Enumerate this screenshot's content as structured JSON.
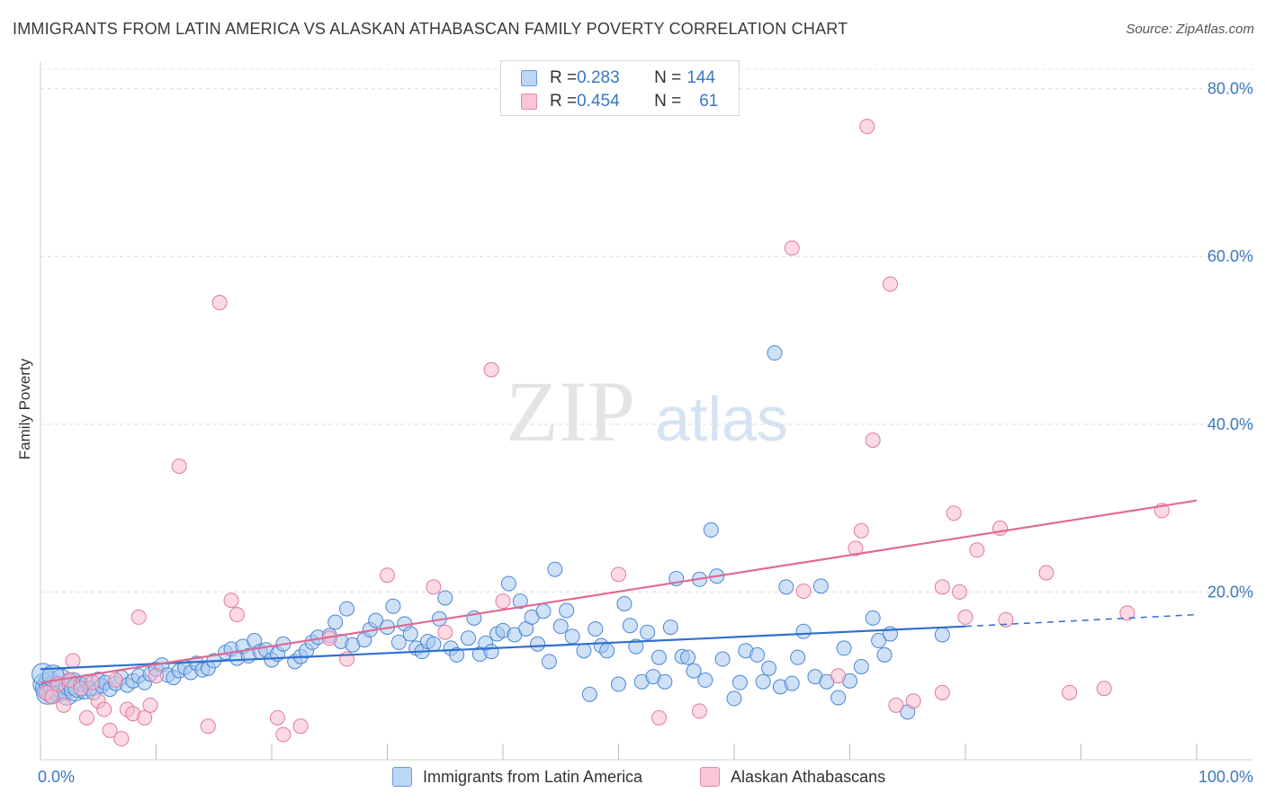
{
  "title": "IMMIGRANTS FROM LATIN AMERICA VS ALASKAN ATHABASCAN FAMILY POVERTY CORRELATION CHART",
  "source": "Source: ZipAtlas.com",
  "watermark": {
    "zip": "ZIP",
    "atlas": "atlas"
  },
  "legend_top": {
    "rows": [
      {
        "r_label": "R = ",
        "r_value": "0.283",
        "n_label": "N = ",
        "n_value": "144"
      },
      {
        "r_label": "R = ",
        "r_value": "0.454",
        "n_label": "N = ",
        "n_value": "61"
      }
    ]
  },
  "colors": {
    "blue_fill": "#a8c8f0",
    "blue_stroke": "#4a86d4",
    "blue_line": "#2f6fcf",
    "pink_fill": "#f7bccd",
    "pink_stroke": "#e07a9c",
    "pink_line": "#e06a94",
    "axis_text": "#3b76c4"
  },
  "chart_data": {
    "type": "scatter",
    "title": "IMMIGRANTS FROM LATIN AMERICA VS ALASKAN ATHABASCAN FAMILY POVERTY CORRELATION CHART",
    "xlabel": "",
    "ylabel": "Family Poverty",
    "xlim": [
      0,
      100
    ],
    "ylim": [
      0,
      82
    ],
    "x_tick_labels": [
      "0.0%",
      "100.0%"
    ],
    "y_ticks": [
      20,
      40,
      60,
      80
    ],
    "y_tick_labels": [
      "20.0%",
      "40.0%",
      "60.0%",
      "80.0%"
    ],
    "grid": "horizontal dashed",
    "legend_position": "top-center",
    "series": [
      {
        "name": "Immigrants from Latin America",
        "R": 0.283,
        "N": 144,
        "trend": {
          "x0": 0,
          "y0": 10.8,
          "x1": 80,
          "y1": 15.9,
          "dash_to": 100,
          "dash_y": 17.3
        },
        "points": [
          [
            0.3,
            9.0
          ],
          [
            0.5,
            8.5
          ],
          [
            0.8,
            9.2
          ],
          [
            1.0,
            8.0
          ],
          [
            1.2,
            8.8
          ],
          [
            1.5,
            8.2
          ],
          [
            1.8,
            9.5
          ],
          [
            2.0,
            8.4
          ],
          [
            2.3,
            7.8
          ],
          [
            2.5,
            8.9
          ],
          [
            2.8,
            9.1
          ],
          [
            3.0,
            8.3
          ],
          [
            3.3,
            8.7
          ],
          [
            3.5,
            9.0
          ],
          [
            3.8,
            8.1
          ],
          [
            4.0,
            9.3
          ],
          [
            4.3,
            8.5
          ],
          [
            4.6,
            8.0
          ],
          [
            5.0,
            9.6
          ],
          [
            5.3,
            8.8
          ],
          [
            5.6,
            9.2
          ],
          [
            6.0,
            8.4
          ],
          [
            6.5,
            9.1
          ],
          [
            7.0,
            9.8
          ],
          [
            7.5,
            8.9
          ],
          [
            8.0,
            9.4
          ],
          [
            8.5,
            10.0
          ],
          [
            9.0,
            9.2
          ],
          [
            9.5,
            10.2
          ],
          [
            10.0,
            10.8
          ],
          [
            10.5,
            11.3
          ],
          [
            11.0,
            10.1
          ],
          [
            11.5,
            9.8
          ],
          [
            12.0,
            10.6
          ],
          [
            12.5,
            11.0
          ],
          [
            13.0,
            10.4
          ],
          [
            13.5,
            11.5
          ],
          [
            14.0,
            10.7
          ],
          [
            14.5,
            10.9
          ],
          [
            15.0,
            11.8
          ],
          [
            16.0,
            12.8
          ],
          [
            16.5,
            13.2
          ],
          [
            17.0,
            12.1
          ],
          [
            17.5,
            13.5
          ],
          [
            18.0,
            12.4
          ],
          [
            18.5,
            14.2
          ],
          [
            19.0,
            12.9
          ],
          [
            19.5,
            13.1
          ],
          [
            20.0,
            11.9
          ],
          [
            20.5,
            12.6
          ],
          [
            21.0,
            13.8
          ],
          [
            22.0,
            11.7
          ],
          [
            22.5,
            12.3
          ],
          [
            23.0,
            13.0
          ],
          [
            23.5,
            14.0
          ],
          [
            24.0,
            14.6
          ],
          [
            25.0,
            14.8
          ],
          [
            25.5,
            16.4
          ],
          [
            26.0,
            14.1
          ],
          [
            26.5,
            18.0
          ],
          [
            27.0,
            13.7
          ],
          [
            28.0,
            14.3
          ],
          [
            28.5,
            15.5
          ],
          [
            29.0,
            16.6
          ],
          [
            30.0,
            15.8
          ],
          [
            30.5,
            18.3
          ],
          [
            31.0,
            14.0
          ],
          [
            31.5,
            16.2
          ],
          [
            32.0,
            15.0
          ],
          [
            32.5,
            13.3
          ],
          [
            33.0,
            12.9
          ],
          [
            33.5,
            14.1
          ],
          [
            34.0,
            13.8
          ],
          [
            34.5,
            16.8
          ],
          [
            35.0,
            19.3
          ],
          [
            35.5,
            13.3
          ],
          [
            36.0,
            12.5
          ],
          [
            37.0,
            14.5
          ],
          [
            37.5,
            16.9
          ],
          [
            38.0,
            12.6
          ],
          [
            38.5,
            13.9
          ],
          [
            39.0,
            12.9
          ],
          [
            39.5,
            15.0
          ],
          [
            40.0,
            15.4
          ],
          [
            40.5,
            21.0
          ],
          [
            41.0,
            14.9
          ],
          [
            41.5,
            18.9
          ],
          [
            42.0,
            15.6
          ],
          [
            42.5,
            17.0
          ],
          [
            43.0,
            13.8
          ],
          [
            43.5,
            17.7
          ],
          [
            44.0,
            11.7
          ],
          [
            44.5,
            22.7
          ],
          [
            45.0,
            15.9
          ],
          [
            45.5,
            17.8
          ],
          [
            46.0,
            14.7
          ],
          [
            47.0,
            13.0
          ],
          [
            47.5,
            7.8
          ],
          [
            48.0,
            15.6
          ],
          [
            48.5,
            13.6
          ],
          [
            49.0,
            13.0
          ],
          [
            50.0,
            9.0
          ],
          [
            50.5,
            18.6
          ],
          [
            51.0,
            16.0
          ],
          [
            51.5,
            13.5
          ],
          [
            52.0,
            9.3
          ],
          [
            52.5,
            15.2
          ],
          [
            53.0,
            9.9
          ],
          [
            53.5,
            12.2
          ],
          [
            54.0,
            9.3
          ],
          [
            54.5,
            15.8
          ],
          [
            55.0,
            21.6
          ],
          [
            55.5,
            12.3
          ],
          [
            56.0,
            12.2
          ],
          [
            56.5,
            10.6
          ],
          [
            57.0,
            21.5
          ],
          [
            57.5,
            9.5
          ],
          [
            58.0,
            27.4
          ],
          [
            58.5,
            21.9
          ],
          [
            59.0,
            12.0
          ],
          [
            60.0,
            7.3
          ],
          [
            60.5,
            9.2
          ],
          [
            61.0,
            13.0
          ],
          [
            62.0,
            12.5
          ],
          [
            62.5,
            9.3
          ],
          [
            63.0,
            10.9
          ],
          [
            63.5,
            48.5
          ],
          [
            64.0,
            8.7
          ],
          [
            64.5,
            20.6
          ],
          [
            65.0,
            9.1
          ],
          [
            65.5,
            12.2
          ],
          [
            66.0,
            15.3
          ],
          [
            67.0,
            9.9
          ],
          [
            67.5,
            20.7
          ],
          [
            68.0,
            9.3
          ],
          [
            69.0,
            7.4
          ],
          [
            69.5,
            13.3
          ],
          [
            70.0,
            9.4
          ],
          [
            71.0,
            11.1
          ],
          [
            72.0,
            16.9
          ],
          [
            72.5,
            14.2
          ],
          [
            73.0,
            12.5
          ],
          [
            73.5,
            15.0
          ],
          [
            75.0,
            5.7
          ],
          [
            78.0,
            14.9
          ],
          [
            0.2,
            10.2
          ],
          [
            0.6,
            7.9
          ],
          [
            1.1,
            10.0
          ]
        ]
      },
      {
        "name": "Alaskan Athabascans",
        "R": 0.454,
        "N": 61,
        "trend": {
          "x0": 0,
          "y0": 9.2,
          "x1": 100,
          "y1": 30.9
        },
        "points": [
          [
            0.5,
            8.0
          ],
          [
            1.0,
            7.5
          ],
          [
            1.5,
            9.0
          ],
          [
            2.0,
            6.5
          ],
          [
            2.5,
            9.5
          ],
          [
            2.8,
            11.8
          ],
          [
            3.5,
            8.5
          ],
          [
            4.0,
            5.0
          ],
          [
            4.5,
            9.2
          ],
          [
            5.0,
            7.0
          ],
          [
            5.5,
            6.0
          ],
          [
            6.0,
            3.5
          ],
          [
            6.5,
            9.5
          ],
          [
            7.0,
            2.5
          ],
          [
            7.5,
            6.0
          ],
          [
            8.0,
            5.5
          ],
          [
            8.5,
            17.0
          ],
          [
            9.0,
            5.0
          ],
          [
            9.5,
            6.5
          ],
          [
            10.0,
            10.0
          ],
          [
            12.0,
            35.0
          ],
          [
            14.5,
            4.0
          ],
          [
            15.5,
            54.5
          ],
          [
            16.5,
            19.0
          ],
          [
            17.0,
            17.3
          ],
          [
            20.5,
            5.0
          ],
          [
            21.0,
            3.0
          ],
          [
            22.5,
            4.0
          ],
          [
            25.0,
            14.5
          ],
          [
            26.5,
            12.0
          ],
          [
            30.0,
            22.0
          ],
          [
            34.0,
            20.6
          ],
          [
            35.0,
            15.2
          ],
          [
            39.0,
            46.5
          ],
          [
            40.0,
            18.9
          ],
          [
            50.0,
            22.1
          ],
          [
            53.5,
            5.0
          ],
          [
            57.0,
            5.8
          ],
          [
            66.0,
            20.1
          ],
          [
            65.0,
            61.0
          ],
          [
            69.0,
            10.0
          ],
          [
            71.0,
            27.3
          ],
          [
            70.5,
            25.2
          ],
          [
            72.0,
            38.1
          ],
          [
            71.5,
            75.5
          ],
          [
            73.5,
            56.7
          ],
          [
            74.0,
            6.5
          ],
          [
            75.5,
            7.0
          ],
          [
            78.0,
            8.0
          ],
          [
            78.0,
            20.6
          ],
          [
            79.0,
            29.4
          ],
          [
            79.5,
            20.0
          ],
          [
            80.0,
            17.0
          ],
          [
            81.0,
            25.0
          ],
          [
            83.0,
            27.6
          ],
          [
            83.5,
            16.7
          ],
          [
            87.0,
            22.3
          ],
          [
            89.0,
            8.0
          ],
          [
            92.0,
            8.5
          ],
          [
            97.0,
            29.7
          ],
          [
            94.0,
            17.5
          ]
        ]
      }
    ]
  },
  "axes": {
    "y_axis_title": "Family Poverty",
    "x_min_label": "0.0%",
    "x_max_label": "100.0%"
  },
  "bottom_legend": {
    "item1": "Immigrants from Latin America",
    "item2": "Alaskan Athabascans"
  }
}
